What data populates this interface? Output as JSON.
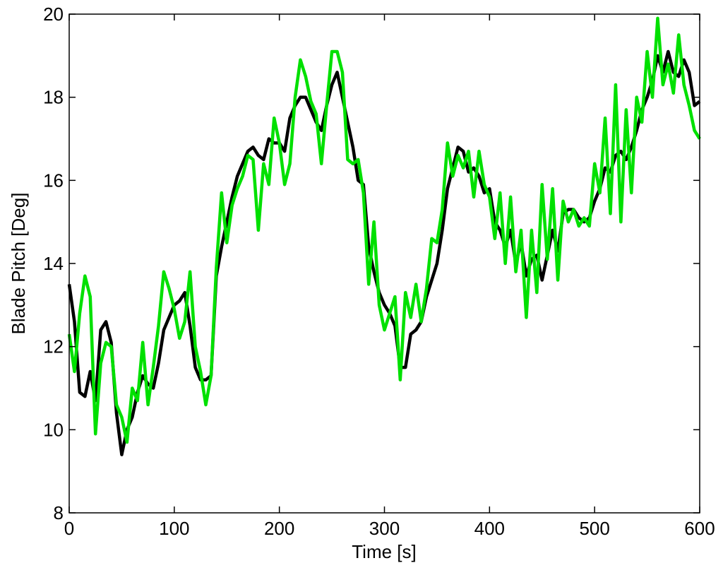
{
  "chart_data": {
    "type": "line",
    "x_label": "Time [s]",
    "y_label": "Blade Pitch [Deg]",
    "x": [
      0,
      5,
      10,
      15,
      20,
      25,
      30,
      35,
      40,
      45,
      50,
      55,
      60,
      65,
      70,
      75,
      80,
      85,
      90,
      95,
      100,
      105,
      110,
      115,
      120,
      125,
      130,
      135,
      140,
      145,
      150,
      155,
      160,
      165,
      170,
      175,
      180,
      185,
      190,
      195,
      200,
      205,
      210,
      215,
      220,
      225,
      230,
      235,
      240,
      245,
      250,
      255,
      260,
      265,
      270,
      275,
      280,
      285,
      290,
      295,
      300,
      305,
      310,
      315,
      320,
      325,
      330,
      335,
      340,
      345,
      350,
      355,
      360,
      365,
      370,
      375,
      380,
      385,
      390,
      395,
      400,
      405,
      410,
      415,
      420,
      425,
      430,
      435,
      440,
      445,
      450,
      455,
      460,
      465,
      470,
      475,
      480,
      485,
      490,
      495,
      500,
      505,
      510,
      515,
      520,
      525,
      530,
      535,
      540,
      545,
      550,
      555,
      560,
      565,
      570,
      575,
      580,
      585,
      590,
      595,
      600
    ],
    "series": [
      {
        "color": "#000000",
        "values": [
          13.5,
          12.6,
          10.9,
          10.8,
          11.4,
          10.7,
          12.4,
          12.6,
          12.1,
          10.4,
          9.4,
          10.0,
          10.3,
          10.9,
          11.3,
          11.1,
          11.0,
          11.6,
          12.4,
          12.7,
          13.0,
          13.1,
          13.3,
          12.5,
          11.5,
          11.2,
          11.2,
          11.3,
          13.7,
          14.4,
          15.0,
          15.6,
          16.1,
          16.4,
          16.7,
          16.8,
          16.6,
          16.5,
          17.0,
          16.9,
          16.9,
          16.7,
          17.5,
          17.8,
          18.0,
          18.0,
          17.7,
          17.4,
          17.2,
          17.8,
          18.3,
          18.6,
          18.0,
          17.4,
          16.8,
          16.0,
          15.9,
          14.4,
          13.8,
          13.3,
          13.0,
          12.8,
          12.5,
          11.5,
          11.5,
          12.3,
          12.4,
          12.6,
          13.2,
          13.6,
          14.0,
          14.8,
          15.8,
          16.3,
          16.8,
          16.7,
          16.2,
          16.3,
          16.1,
          15.7,
          15.8,
          15.0,
          14.8,
          14.4,
          14.8,
          14.0,
          14.5,
          13.7,
          14.1,
          14.2,
          13.6,
          14.2,
          14.8,
          14.3,
          15.2,
          15.3,
          15.3,
          15.1,
          15.0,
          15.1,
          15.5,
          15.8,
          16.3,
          16.2,
          16.6,
          16.7,
          16.5,
          16.8,
          17.2,
          17.7,
          18.0,
          18.4,
          19.0,
          18.6,
          19.1,
          18.6,
          18.5,
          18.9,
          18.6,
          17.8,
          17.9
        ]
      },
      {
        "color": "#00e000",
        "values": [
          12.3,
          11.4,
          12.8,
          13.7,
          13.2,
          9.9,
          11.6,
          12.1,
          12.0,
          10.6,
          10.3,
          9.7,
          11.0,
          10.7,
          12.1,
          10.6,
          11.5,
          12.5,
          13.8,
          13.4,
          12.9,
          12.2,
          12.6,
          13.8,
          12.0,
          11.4,
          10.6,
          11.3,
          13.9,
          15.7,
          14.5,
          15.4,
          15.8,
          16.1,
          16.6,
          16.5,
          14.8,
          16.4,
          15.9,
          17.5,
          16.9,
          15.9,
          16.4,
          18.0,
          18.9,
          18.5,
          17.9,
          17.6,
          16.4,
          17.8,
          19.1,
          19.1,
          18.6,
          16.5,
          16.4,
          16.5,
          15.7,
          13.5,
          15.0,
          13.0,
          12.4,
          12.8,
          13.2,
          11.2,
          13.3,
          12.7,
          13.5,
          12.6,
          13.4,
          14.6,
          14.5,
          15.3,
          16.9,
          16.1,
          16.6,
          16.3,
          16.7,
          15.6,
          16.7,
          15.9,
          15.6,
          14.6,
          15.7,
          14.0,
          15.6,
          13.8,
          14.8,
          12.7,
          14.8,
          13.3,
          15.9,
          14.1,
          15.8,
          13.6,
          15.5,
          15.0,
          15.3,
          14.9,
          15.1,
          14.9,
          16.4,
          15.7,
          17.5,
          15.2,
          18.3,
          15.0,
          17.7,
          15.7,
          18.0,
          17.4,
          19.1,
          18.0,
          19.9,
          18.3,
          18.8,
          18.1,
          19.5,
          18.3,
          17.8,
          17.2,
          17.0
        ]
      }
    ],
    "xlim": [
      0,
      600
    ],
    "xticks": [
      0,
      100,
      200,
      300,
      400,
      500,
      600
    ],
    "ylim": [
      8,
      20
    ],
    "yticks": [
      8,
      10,
      12,
      14,
      16,
      18,
      20
    ],
    "grid": false
  }
}
